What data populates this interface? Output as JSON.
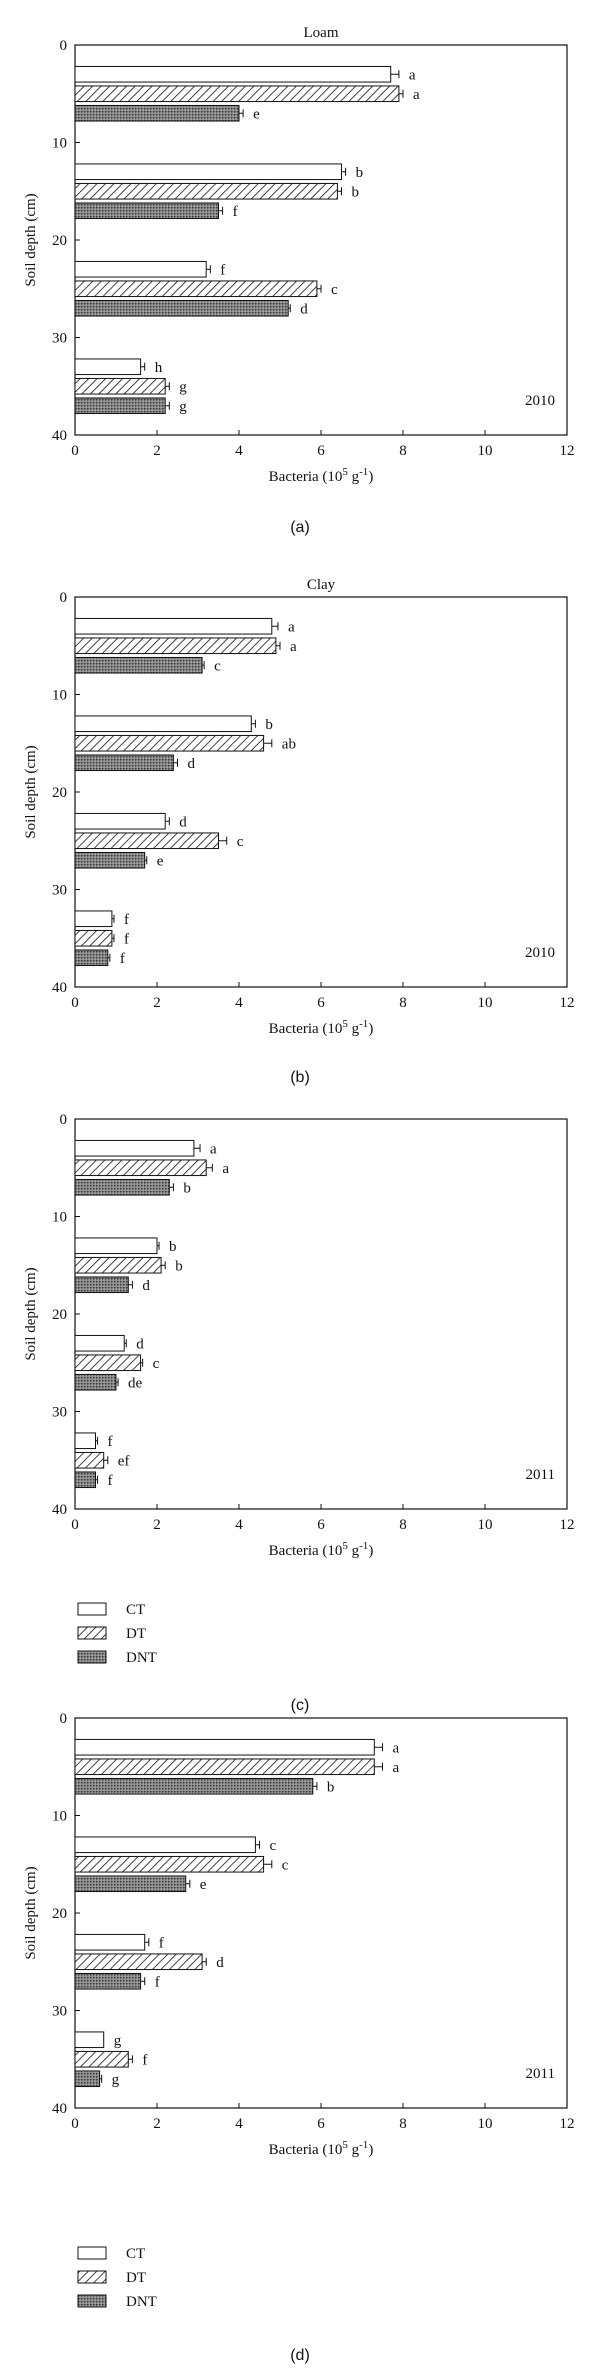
{
  "chart_data": [
    {
      "type": "bar",
      "orientation": "horizontal",
      "panel_label": "(a)",
      "title": "Loam",
      "year": "2010",
      "xlabel": "Bacteria (10^5 g^-1)",
      "ylabel": "Soil depth (cm)",
      "xlim": [
        0,
        12
      ],
      "ylim": [
        0,
        40
      ],
      "xticks": [
        "0",
        "2",
        "4",
        "6",
        "8",
        "10",
        "12"
      ],
      "yticks": [
        "0",
        "10",
        "20",
        "30",
        "40"
      ],
      "groups": [
        {
          "bars": [
            {
              "series": "CT",
              "y": 3.0,
              "value": 7.7,
              "error": 0.2,
              "letter": "a"
            },
            {
              "series": "DT",
              "y": 5.0,
              "value": 7.9,
              "error": 0.1,
              "letter": "a"
            },
            {
              "series": "DNT",
              "y": 7.0,
              "value": 4.0,
              "error": 0.1,
              "letter": "e"
            }
          ]
        },
        {
          "bars": [
            {
              "series": "CT",
              "y": 13.0,
              "value": 6.5,
              "error": 0.1,
              "letter": "b"
            },
            {
              "series": "DT",
              "y": 15.0,
              "value": 6.4,
              "error": 0.1,
              "letter": "b"
            },
            {
              "series": "DNT",
              "y": 17.0,
              "value": 3.5,
              "error": 0.1,
              "letter": "f"
            }
          ]
        },
        {
          "bars": [
            {
              "series": "CT",
              "y": 23.0,
              "value": 3.2,
              "error": 0.1,
              "letter": "f"
            },
            {
              "series": "DT",
              "y": 25.0,
              "value": 5.9,
              "error": 0.1,
              "letter": "c"
            },
            {
              "series": "DNT",
              "y": 27.0,
              "value": 5.2,
              "error": 0.05,
              "letter": "d"
            }
          ]
        },
        {
          "bars": [
            {
              "series": "CT",
              "y": 33.0,
              "value": 1.6,
              "error": 0.1,
              "letter": "h"
            },
            {
              "series": "DT",
              "y": 35.0,
              "value": 2.2,
              "error": 0.1,
              "letter": "g"
            },
            {
              "series": "DNT",
              "y": 37.0,
              "value": 2.2,
              "error": 0.1,
              "letter": "g"
            }
          ]
        }
      ]
    },
    {
      "type": "bar",
      "orientation": "horizontal",
      "panel_label": "(b)",
      "title": "Clay",
      "year": "2010",
      "xlabel": "Bacteria (10^5 g^-1)",
      "ylabel": "Soil depth (cm)",
      "xlim": [
        0,
        12
      ],
      "ylim": [
        0,
        40
      ],
      "xticks": [
        "0",
        "2",
        "4",
        "6",
        "8",
        "10",
        "12"
      ],
      "yticks": [
        "0",
        "10",
        "20",
        "30",
        "40"
      ],
      "groups": [
        {
          "bars": [
            {
              "series": "CT",
              "y": 3.0,
              "value": 4.8,
              "error": 0.15,
              "letter": "a"
            },
            {
              "series": "DT",
              "y": 5.0,
              "value": 4.9,
              "error": 0.1,
              "letter": "a"
            },
            {
              "series": "DNT",
              "y": 7.0,
              "value": 3.1,
              "error": 0.05,
              "letter": "c"
            }
          ]
        },
        {
          "bars": [
            {
              "series": "CT",
              "y": 13.0,
              "value": 4.3,
              "error": 0.1,
              "letter": "b"
            },
            {
              "series": "DT",
              "y": 15.0,
              "value": 4.6,
              "error": 0.2,
              "letter": "ab"
            },
            {
              "series": "DNT",
              "y": 17.0,
              "value": 2.4,
              "error": 0.1,
              "letter": "d"
            }
          ]
        },
        {
          "bars": [
            {
              "series": "CT",
              "y": 23.0,
              "value": 2.2,
              "error": 0.1,
              "letter": "d"
            },
            {
              "series": "DT",
              "y": 25.0,
              "value": 3.5,
              "error": 0.2,
              "letter": "c"
            },
            {
              "series": "DNT",
              "y": 27.0,
              "value": 1.7,
              "error": 0.05,
              "letter": "e"
            }
          ]
        },
        {
          "bars": [
            {
              "series": "CT",
              "y": 33.0,
              "value": 0.9,
              "error": 0.05,
              "letter": "f"
            },
            {
              "series": "DT",
              "y": 35.0,
              "value": 0.9,
              "error": 0.05,
              "letter": "f"
            },
            {
              "series": "DNT",
              "y": 37.0,
              "value": 0.8,
              "error": 0.05,
              "letter": "f"
            }
          ]
        }
      ]
    },
    {
      "type": "bar",
      "orientation": "horizontal",
      "panel_label": "(c)",
      "title": "",
      "year": "2011",
      "xlabel": "Bacteria (10^5 g^-1)",
      "ylabel": "Soil depth (cm)",
      "xlim": [
        0,
        12
      ],
      "ylim": [
        0,
        40
      ],
      "xticks": [
        "0",
        "2",
        "4",
        "6",
        "8",
        "10",
        "12"
      ],
      "yticks": [
        "0",
        "10",
        "20",
        "30",
        "40"
      ],
      "groups": [
        {
          "bars": [
            {
              "series": "CT",
              "y": 3.0,
              "value": 2.9,
              "error": 0.15,
              "letter": "a"
            },
            {
              "series": "DT",
              "y": 5.0,
              "value": 3.2,
              "error": 0.15,
              "letter": "a"
            },
            {
              "series": "DNT",
              "y": 7.0,
              "value": 2.3,
              "error": 0.1,
              "letter": "b"
            }
          ]
        },
        {
          "bars": [
            {
              "series": "CT",
              "y": 13.0,
              "value": 2.0,
              "error": 0.05,
              "letter": "b"
            },
            {
              "series": "DT",
              "y": 15.0,
              "value": 2.1,
              "error": 0.1,
              "letter": "b"
            },
            {
              "series": "DNT",
              "y": 17.0,
              "value": 1.3,
              "error": 0.1,
              "letter": "d"
            }
          ]
        },
        {
          "bars": [
            {
              "series": "CT",
              "y": 23.0,
              "value": 1.2,
              "error": 0.05,
              "letter": "d"
            },
            {
              "series": "DT",
              "y": 25.0,
              "value": 1.6,
              "error": 0.05,
              "letter": "c"
            },
            {
              "series": "DNT",
              "y": 27.0,
              "value": 1.0,
              "error": 0.05,
              "letter": "de"
            }
          ]
        },
        {
          "bars": [
            {
              "series": "CT",
              "y": 33.0,
              "value": 0.5,
              "error": 0.05,
              "letter": "f"
            },
            {
              "series": "DT",
              "y": 35.0,
              "value": 0.7,
              "error": 0.1,
              "letter": "ef"
            },
            {
              "series": "DNT",
              "y": 37.0,
              "value": 0.5,
              "error": 0.05,
              "letter": "f"
            }
          ]
        }
      ],
      "legend": {
        "placement": "below",
        "entries": [
          "CT",
          "DT",
          "DNT"
        ]
      }
    },
    {
      "type": "bar",
      "orientation": "horizontal",
      "panel_label": "(d)",
      "title": "",
      "year": "2011",
      "xlabel": "Bacteria (10^5 g^-1)",
      "ylabel": "Soil depth (cm)",
      "xlim": [
        0,
        12
      ],
      "ylim": [
        0,
        40
      ],
      "xticks": [
        "0",
        "2",
        "4",
        "6",
        "8",
        "10",
        "12"
      ],
      "yticks": [
        "0",
        "10",
        "20",
        "30",
        "40"
      ],
      "groups": [
        {
          "bars": [
            {
              "series": "CT",
              "y": 3.0,
              "value": 7.3,
              "error": 0.2,
              "letter": "a"
            },
            {
              "series": "DT",
              "y": 5.0,
              "value": 7.3,
              "error": 0.2,
              "letter": "a"
            },
            {
              "series": "DNT",
              "y": 7.0,
              "value": 5.8,
              "error": 0.1,
              "letter": "b"
            }
          ]
        },
        {
          "bars": [
            {
              "series": "CT",
              "y": 13.0,
              "value": 4.4,
              "error": 0.1,
              "letter": "c"
            },
            {
              "series": "DT",
              "y": 15.0,
              "value": 4.6,
              "error": 0.2,
              "letter": "c"
            },
            {
              "series": "DNT",
              "y": 17.0,
              "value": 2.7,
              "error": 0.1,
              "letter": "e"
            }
          ]
        },
        {
          "bars": [
            {
              "series": "CT",
              "y": 23.0,
              "value": 1.7,
              "error": 0.1,
              "letter": "f"
            },
            {
              "series": "DT",
              "y": 25.0,
              "value": 3.1,
              "error": 0.1,
              "letter": "d"
            },
            {
              "series": "DNT",
              "y": 27.0,
              "value": 1.6,
              "error": 0.1,
              "letter": "f"
            }
          ]
        },
        {
          "bars": [
            {
              "series": "CT",
              "y": 33.0,
              "value": 0.7,
              "error": 0.0,
              "letter": "g"
            },
            {
              "series": "DT",
              "y": 35.0,
              "value": 1.3,
              "error": 0.1,
              "letter": "f"
            },
            {
              "series": "DNT",
              "y": 37.0,
              "value": 0.6,
              "error": 0.05,
              "letter": "g"
            }
          ]
        }
      ],
      "legend": {
        "placement": "below",
        "entries": [
          "CT",
          "DT",
          "DNT"
        ]
      }
    }
  ],
  "series_styles": {
    "CT": {
      "fill": "white"
    },
    "DT": {
      "fill": "hatch"
    },
    "DNT": {
      "fill": "dotted-gray"
    }
  },
  "colors": {
    "axis": "#111111",
    "dnt_base": "#8a8a8a"
  }
}
